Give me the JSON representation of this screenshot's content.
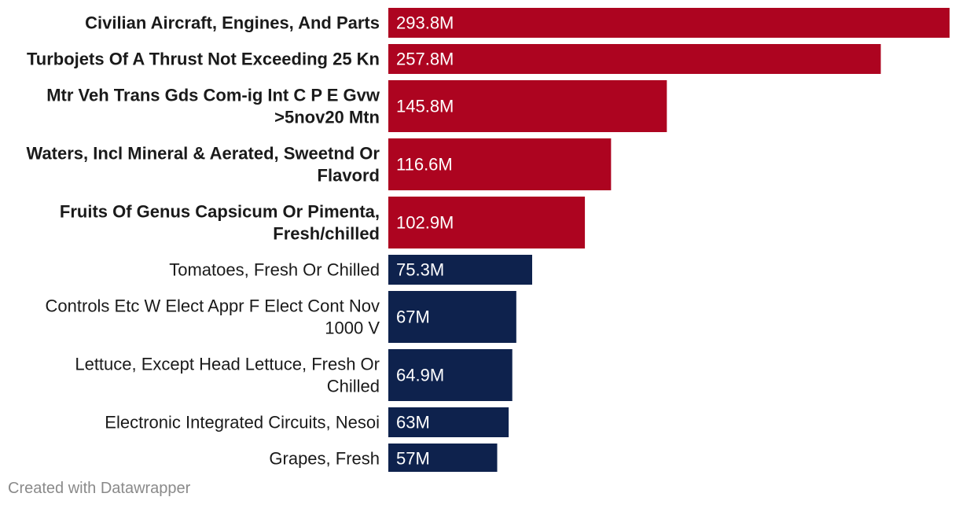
{
  "chart_data": {
    "type": "bar",
    "orientation": "horizontal",
    "categories": [
      "Civilian Aircraft, Engines, And Parts",
      "Turbojets Of A Thrust Not Exceeding 25 Kn",
      "Mtr Veh Trans Gds Com-ig Int C P E Gvw >5nov20 Mtn",
      "Waters, Incl Mineral & Aerated, Sweetnd Or Flavord",
      "Fruits Of Genus Capsicum Or Pimenta, Fresh/chilled",
      "Tomatoes, Fresh Or Chilled",
      "Controls Etc W Elect Appr F Elect Cont Nov 1000 V",
      "Lettuce, Except Head Lettuce, Fresh Or Chilled",
      "Electronic Integrated Circuits, Nesoi",
      "Grapes, Fresh"
    ],
    "category_lines": [
      [
        "Civilian Aircraft, Engines, And Parts"
      ],
      [
        "Turbojets Of A Thrust Not Exceeding 25 Kn"
      ],
      [
        "Mtr Veh Trans Gds Com-ig Int C P E Gvw",
        ">5nov20 Mtn"
      ],
      [
        "Waters, Incl Mineral & Aerated, Sweetnd Or",
        "Flavord"
      ],
      [
        "Fruits Of Genus Capsicum Or Pimenta,",
        "Fresh/chilled"
      ],
      [
        "Tomatoes, Fresh Or Chilled"
      ],
      [
        "Controls Etc W Elect Appr F Elect Cont Nov",
        "1000 V"
      ],
      [
        "Lettuce, Except Head Lettuce, Fresh Or",
        "Chilled"
      ],
      [
        "Electronic Integrated Circuits, Nesoi"
      ],
      [
        "Grapes, Fresh"
      ]
    ],
    "values": [
      293.8,
      257.8,
      145.8,
      116.6,
      102.9,
      75.3,
      67,
      64.9,
      63,
      57
    ],
    "value_labels": [
      "293.8M",
      "257.8M",
      "145.8M",
      "116.6M",
      "102.9M",
      "75.3M",
      "67M",
      "64.9M",
      "63M",
      "57M"
    ],
    "highlighted": [
      true,
      true,
      true,
      true,
      true,
      false,
      false,
      false,
      false,
      false
    ],
    "colors": {
      "highlight": "#ad0420",
      "default": "#0e224d",
      "value_text": "#ffffff"
    },
    "xlim": [
      0,
      293.8
    ],
    "grid": false,
    "title": "",
    "xlabel": "",
    "ylabel": ""
  },
  "footer": {
    "credit": "Created with Datawrapper"
  }
}
